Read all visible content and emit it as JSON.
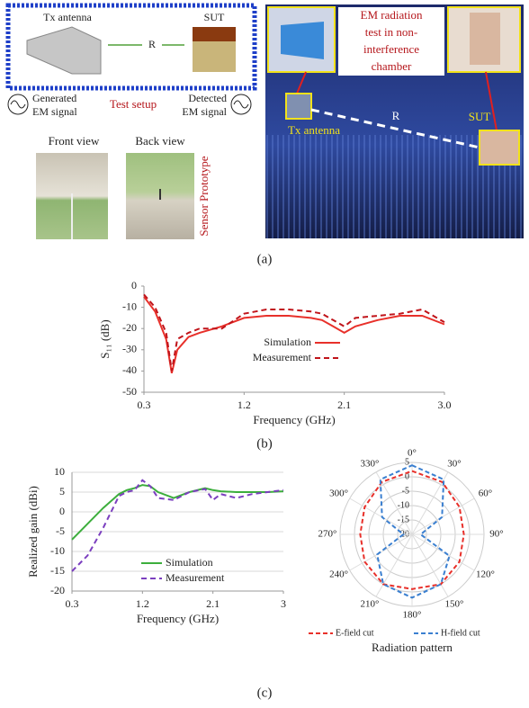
{
  "panel_a": {
    "setup": {
      "tx_antenna": "Tx antenna",
      "distance": "R",
      "sut": "SUT",
      "generated": [
        "Generated",
        "EM signal"
      ],
      "test_setup": "Test setup",
      "detected": [
        "Detected",
        "EM signal"
      ]
    },
    "prototype": {
      "front": "Front view",
      "back": "Back view",
      "label": "Sensor Prototype"
    },
    "chamber": {
      "caption": [
        "EM radiation",
        "test in non-",
        "interference",
        "chamber"
      ],
      "tx_antenna": "Tx antenna",
      "distance": "R",
      "sut": "SUT"
    }
  },
  "captions": [
    "(a)",
    "(b)",
    "(c)"
  ],
  "chart_data": [
    {
      "type": "line",
      "x": [
        0.3,
        0.4,
        0.5,
        0.55,
        0.6,
        0.7,
        0.8,
        1.0,
        1.2,
        1.4,
        1.6,
        1.8,
        1.9,
        2.0,
        2.1,
        2.2,
        2.4,
        2.6,
        2.8,
        3.0
      ],
      "series": [
        {
          "name": "Simulation",
          "color": "#e8302a",
          "style": "solid",
          "values": [
            -5,
            -12,
            -25,
            -41,
            -30,
            -24,
            -22,
            -19,
            -15,
            -14,
            -14,
            -15,
            -16,
            -19,
            -22,
            -19,
            -16,
            -14,
            -14,
            -18
          ]
        },
        {
          "name": "Measurement",
          "color": "#c0141a",
          "style": "dashed",
          "values": [
            -4,
            -10,
            -22,
            -40,
            -25,
            -22,
            -20,
            -20,
            -13,
            -11,
            -11,
            -12,
            -13,
            -16,
            -19,
            -15,
            -14,
            -13,
            -11,
            -17
          ]
        }
      ],
      "xlabel": "Frequency (GHz)",
      "ylabel": "S₁₁ (dB)",
      "xlim": [
        0.3,
        3
      ],
      "xticks": [
        0.3,
        1.2,
        2.1,
        {
          "value": 3,
          "label": "3.0"
        }
      ],
      "ylim": [
        -50,
        0
      ],
      "yticks": [
        0,
        -10,
        -20,
        -30,
        -40,
        -50
      ],
      "grid": false
    },
    {
      "type": "line",
      "x": [
        0.3,
        0.5,
        0.7,
        0.9,
        1.0,
        1.1,
        1.2,
        1.3,
        1.4,
        1.6,
        1.8,
        2.0,
        2.1,
        2.2,
        2.4,
        2.6,
        2.8,
        3.0
      ],
      "series": [
        {
          "name": "Simulation",
          "color": "#3cae3c",
          "style": "solid",
          "values": [
            -7,
            -3,
            1,
            4.5,
            5.5,
            6,
            6.8,
            6.5,
            5,
            3.5,
            5,
            6,
            5.5,
            5.2,
            5,
            5,
            5,
            5.2
          ]
        },
        {
          "name": "Measurement",
          "color": "#7b3fbf",
          "style": "dashed",
          "values": [
            -15,
            -11,
            -4,
            4,
            5,
            5.5,
            8,
            6.5,
            3.5,
            3,
            5,
            5.8,
            3,
            4.5,
            3.5,
            4.5,
            5,
            5.5
          ]
        }
      ],
      "xlabel": "Frequency (GHz)",
      "ylabel": "Realized gain (dBi)",
      "xlim": [
        0.3,
        3
      ],
      "xticks": [
        0.3,
        1.2,
        2.1,
        3
      ],
      "ylim": [
        -20,
        10
      ],
      "yticks": [
        10,
        5,
        0,
        -5,
        -10,
        -15,
        -20
      ],
      "grid": true
    },
    {
      "type": "polar",
      "title": "Radiation pattern",
      "theta": [
        0,
        30,
        60,
        90,
        120,
        150,
        180,
        210,
        240,
        270,
        300,
        330
      ],
      "series": [
        {
          "name": "E-field cut",
          "color": "#e8302a",
          "style": "dashed",
          "values": [
            2,
            1,
            -1,
            -2,
            -1,
            0,
            -1,
            0,
            -1,
            -2,
            -1,
            1
          ]
        },
        {
          "name": "H-field cut",
          "color": "#3a7fd0",
          "style": "dashed",
          "values": [
            4,
            2,
            -8,
            -17,
            -5,
            0,
            2,
            0,
            -6,
            -17,
            -8,
            2
          ]
        }
      ],
      "rlim": [
        -20,
        5
      ],
      "rticks": [
        5,
        0,
        -5,
        -10,
        -15,
        -20
      ],
      "thetaticks": [
        {
          "value": 0,
          "label": "0°"
        },
        {
          "value": 30,
          "label": "30°"
        },
        {
          "value": 60,
          "label": "60°"
        },
        {
          "value": 90,
          "label": "90°"
        },
        {
          "value": 120,
          "label": "120°"
        },
        {
          "value": 150,
          "label": "150°"
        },
        {
          "value": 180,
          "label": "180°"
        },
        {
          "value": 210,
          "label": "210°"
        },
        {
          "value": 240,
          "label": "240°"
        },
        {
          "value": 270,
          "label": "270°"
        },
        {
          "value": 300,
          "label": "300°"
        },
        {
          "value": 330,
          "label": "330°"
        }
      ]
    }
  ]
}
